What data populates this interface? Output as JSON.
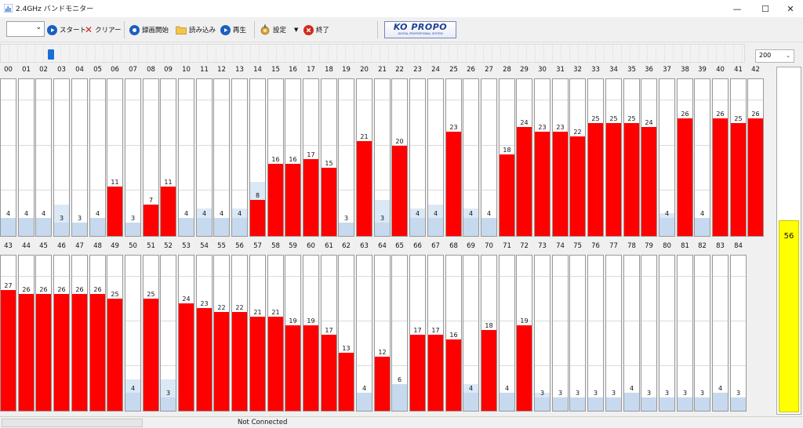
{
  "window": {
    "title": "2.4GHz バンドモニター",
    "minimize": "—",
    "maximize": "☐",
    "close": "✕"
  },
  "toolbar": {
    "combo_value": "",
    "start": "スタート",
    "clear": "クリアー",
    "record": "録画開始",
    "load": "読み込み",
    "play": "再生",
    "settings": "設定",
    "exit": "終了"
  },
  "logo": {
    "main": "KO PROPO",
    "sub": "DIGITAL PROPORTIONAL SYSTEM"
  },
  "zoom": {
    "value": "200",
    "chevron": "⌄"
  },
  "scale_max": 35,
  "channels": [
    {
      "ch": "00",
      "value": 4,
      "active": false
    },
    {
      "ch": "01",
      "value": 4,
      "active": false
    },
    {
      "ch": "02",
      "value": 4,
      "active": false
    },
    {
      "ch": "03",
      "value": 3,
      "active": false,
      "peak": 7
    },
    {
      "ch": "04",
      "value": 3,
      "active": false
    },
    {
      "ch": "05",
      "value": 4,
      "active": false
    },
    {
      "ch": "06",
      "value": 11,
      "active": true
    },
    {
      "ch": "07",
      "value": 3,
      "active": false
    },
    {
      "ch": "08",
      "value": 7,
      "active": true
    },
    {
      "ch": "09",
      "value": 11,
      "active": true
    },
    {
      "ch": "10",
      "value": 4,
      "active": false
    },
    {
      "ch": "11",
      "value": 4,
      "active": false,
      "peak": 6
    },
    {
      "ch": "12",
      "value": 4,
      "active": false
    },
    {
      "ch": "13",
      "value": 4,
      "active": false,
      "peak": 6
    },
    {
      "ch": "14",
      "value": 8,
      "active": true,
      "peak": 12
    },
    {
      "ch": "15",
      "value": 16,
      "active": true
    },
    {
      "ch": "16",
      "value": 16,
      "active": true
    },
    {
      "ch": "17",
      "value": 17,
      "active": true
    },
    {
      "ch": "18",
      "value": 15,
      "active": true
    },
    {
      "ch": "19",
      "value": 3,
      "active": false
    },
    {
      "ch": "20",
      "value": 21,
      "active": true
    },
    {
      "ch": "21",
      "value": 3,
      "active": false,
      "peak": 8
    },
    {
      "ch": "22",
      "value": 20,
      "active": true
    },
    {
      "ch": "23",
      "value": 4,
      "active": false,
      "peak": 6
    },
    {
      "ch": "24",
      "value": 4,
      "active": false,
      "peak": 7
    },
    {
      "ch": "25",
      "value": 23,
      "active": true
    },
    {
      "ch": "26",
      "value": 4,
      "active": false,
      "peak": 6
    },
    {
      "ch": "27",
      "value": 4,
      "active": false
    },
    {
      "ch": "28",
      "value": 18,
      "active": true
    },
    {
      "ch": "29",
      "value": 24,
      "active": true
    },
    {
      "ch": "30",
      "value": 23,
      "active": true
    },
    {
      "ch": "31",
      "value": 23,
      "active": true
    },
    {
      "ch": "32",
      "value": 22,
      "active": true
    },
    {
      "ch": "33",
      "value": 25,
      "active": true
    },
    {
      "ch": "34",
      "value": 25,
      "active": true
    },
    {
      "ch": "35",
      "value": 25,
      "active": true
    },
    {
      "ch": "36",
      "value": 24,
      "active": true
    },
    {
      "ch": "37",
      "value": 4,
      "active": false,
      "peak": 5
    },
    {
      "ch": "38",
      "value": 26,
      "active": true
    },
    {
      "ch": "39",
      "value": 4,
      "active": false
    },
    {
      "ch": "40",
      "value": 26,
      "active": true
    },
    {
      "ch": "41",
      "value": 25,
      "active": true
    },
    {
      "ch": "42",
      "value": 26,
      "active": true
    },
    {
      "ch": "43",
      "value": 27,
      "active": true
    },
    {
      "ch": "44",
      "value": 26,
      "active": true
    },
    {
      "ch": "45",
      "value": 26,
      "active": true
    },
    {
      "ch": "46",
      "value": 26,
      "active": true
    },
    {
      "ch": "47",
      "value": 26,
      "active": true
    },
    {
      "ch": "48",
      "value": 26,
      "active": true
    },
    {
      "ch": "49",
      "value": 25,
      "active": true
    },
    {
      "ch": "50",
      "value": 4,
      "active": false,
      "peak": 7
    },
    {
      "ch": "51",
      "value": 25,
      "active": true
    },
    {
      "ch": "52",
      "value": 3,
      "active": false,
      "peak": 7
    },
    {
      "ch": "53",
      "value": 24,
      "active": true
    },
    {
      "ch": "54",
      "value": 23,
      "active": true
    },
    {
      "ch": "55",
      "value": 22,
      "active": true
    },
    {
      "ch": "56",
      "value": 22,
      "active": true
    },
    {
      "ch": "57",
      "value": 21,
      "active": true
    },
    {
      "ch": "58",
      "value": 21,
      "active": true
    },
    {
      "ch": "59",
      "value": 19,
      "active": true
    },
    {
      "ch": "60",
      "value": 19,
      "active": true
    },
    {
      "ch": "61",
      "value": 17,
      "active": true
    },
    {
      "ch": "62",
      "value": 13,
      "active": true
    },
    {
      "ch": "63",
      "value": 4,
      "active": false
    },
    {
      "ch": "64",
      "value": 12,
      "active": true
    },
    {
      "ch": "65",
      "value": 6,
      "active": false
    },
    {
      "ch": "66",
      "value": 17,
      "active": true
    },
    {
      "ch": "67",
      "value": 17,
      "active": true
    },
    {
      "ch": "68",
      "value": 16,
      "active": true
    },
    {
      "ch": "69",
      "value": 4,
      "active": false,
      "peak": 6
    },
    {
      "ch": "70",
      "value": 18,
      "active": true
    },
    {
      "ch": "71",
      "value": 4,
      "active": false
    },
    {
      "ch": "72",
      "value": 19,
      "active": true
    },
    {
      "ch": "73",
      "value": 3,
      "active": false,
      "peak": 4
    },
    {
      "ch": "74",
      "value": 3,
      "active": false
    },
    {
      "ch": "75",
      "value": 3,
      "active": false
    },
    {
      "ch": "76",
      "value": 3,
      "active": false
    },
    {
      "ch": "77",
      "value": 3,
      "active": false
    },
    {
      "ch": "78",
      "value": 4,
      "active": false
    },
    {
      "ch": "79",
      "value": 3,
      "active": false
    },
    {
      "ch": "80",
      "value": 3,
      "active": false
    },
    {
      "ch": "81",
      "value": 3,
      "active": false
    },
    {
      "ch": "82",
      "value": 3,
      "active": false
    },
    {
      "ch": "83",
      "value": 4,
      "active": false
    },
    {
      "ch": "84",
      "value": 3,
      "active": false
    }
  ],
  "gauge": {
    "value": "56",
    "level": 0.56
  },
  "status": {
    "text": "Not Connected"
  },
  "colors": {
    "active_bar": "#ff0000",
    "inactive_bar": "#c6d9ee",
    "peak_bar": "#dbe8f5",
    "gauge_fill": "#ffff00"
  }
}
